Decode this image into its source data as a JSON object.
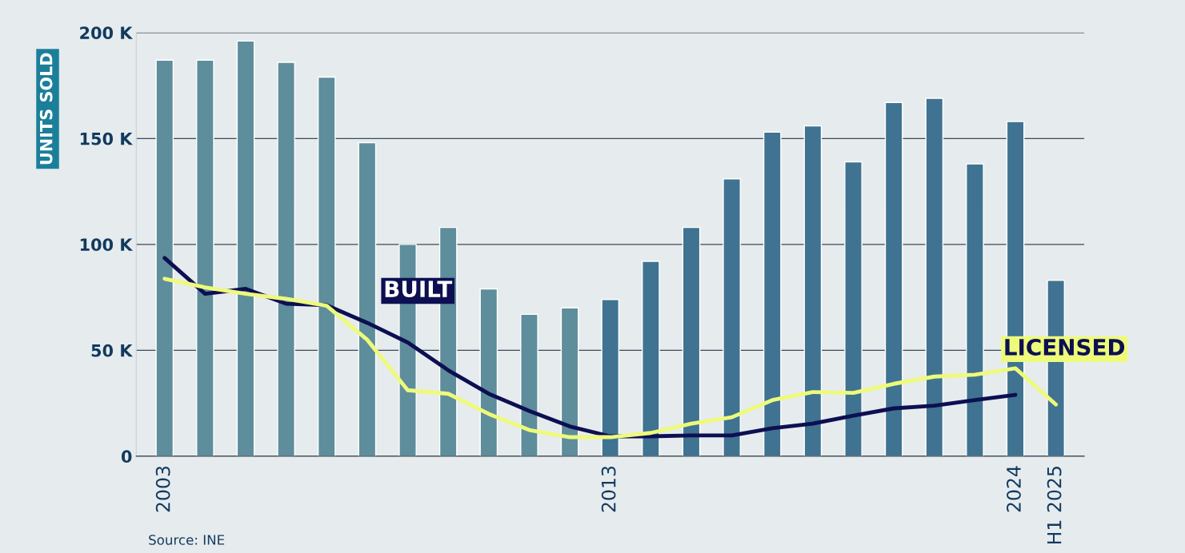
{
  "chart_data": {
    "type": "bar",
    "ylabel": "UNITS SOLD",
    "categories": [
      "2003",
      null,
      null,
      null,
      null,
      null,
      null,
      null,
      null,
      null,
      null,
      "2013",
      null,
      null,
      null,
      null,
      null,
      null,
      null,
      null,
      null,
      "2024",
      "H1 2025"
    ],
    "series": [
      {
        "colors": [
          "#5e8d9c",
          "#5e8d9c",
          "#5e8d9c",
          "#5e8d9c",
          "#5e8d9c",
          "#5e8d9c",
          "#5e8d9c",
          "#5e8d9c",
          "#5e8d9c",
          "#5e8d9c",
          "#5e8d9c",
          "#3f7391",
          "#3f7391",
          "#3f7391",
          "#3f7391",
          "#3f7391",
          "#3f7391",
          "#3f7391",
          "#3f7391",
          "#3f7391",
          "#3f7391",
          "#3f7391",
          "#3f7391"
        ],
        "values": [
          187,
          187,
          196,
          186,
          179,
          148,
          100,
          108,
          79,
          67,
          70,
          74,
          92,
          108,
          131,
          153,
          156,
          139,
          167,
          169,
          138,
          158,
          83
        ]
      },
      {
        "type": "line",
        "name": "BUILT",
        "color": "#0d0f52",
        "values": [
          93.6,
          76.7,
          79,
          72,
          71.3,
          63,
          53.7,
          40.6,
          29.5,
          21.4,
          14.1,
          9.4,
          9.4,
          9.8,
          9.8,
          13.2,
          15.4,
          19.2,
          22.6,
          23.9,
          26.5,
          29,
          null
        ]
      },
      {
        "type": "line",
        "name": "LICENSED",
        "color": "#eefa7a",
        "values": [
          83.8,
          79.7,
          76.7,
          74.3,
          71,
          55,
          31.2,
          29.5,
          20,
          12.4,
          9,
          9,
          11,
          15.4,
          18.4,
          26.5,
          30.3,
          29.9,
          34.2,
          37.6,
          38.5,
          41.5,
          24.4
        ]
      }
    ],
    "ylim": [
      0,
      200
    ],
    "yticks": [
      {
        "value": 0,
        "label": "0"
      },
      {
        "value": 50,
        "label": "50 K"
      },
      {
        "value": 100,
        "label": "100 K"
      },
      {
        "value": 150,
        "label": "150 K"
      },
      {
        "value": 200,
        "label": "200 K"
      }
    ],
    "grid": "y",
    "legend": false,
    "annotations": [
      "Source: INE"
    ]
  }
}
